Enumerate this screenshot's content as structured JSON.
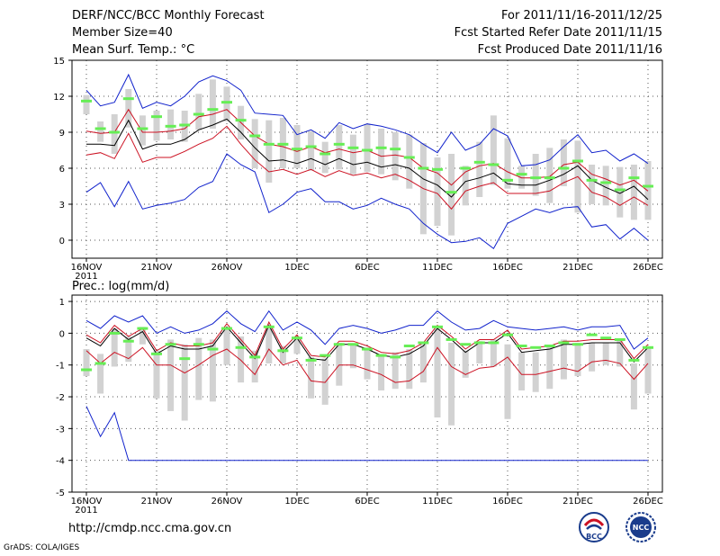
{
  "header": {
    "title": "DERF/NCC/BCC Monthly Forecast",
    "member_size": "Member Size=40",
    "variable": "Mean Surf. Temp.: °C",
    "period": "For 2011/11/16-2011/12/25",
    "started": "Fcst Started Refer Date 2011/11/15",
    "produced": "Fcst Produced Date 2011/11/16"
  },
  "footer": {
    "url": "http://cmdp.ncc.cma.gov.cn",
    "grads": "GrADS: COLA/IGES",
    "logo_left": "BCC",
    "logo_right": "NCC"
  },
  "colors": {
    "box": "#d2d2d2",
    "median": "#66ee55",
    "mean": "#000000",
    "pct": "#cc1122",
    "envelope": "#1122cc",
    "grid": "#555555"
  },
  "chart_data": [
    {
      "type": "line",
      "title": "",
      "ylabel": "",
      "ylim": [
        -1.5,
        15
      ],
      "yticks": [
        "15",
        "12",
        "9",
        "6",
        "3",
        "0"
      ],
      "ytick_values": [
        15,
        12,
        9,
        6,
        3,
        0
      ],
      "xlim": [
        0,
        40
      ],
      "xtick_labels": [
        "16NOV",
        "21NOV",
        "26NOV",
        "1DEC",
        "6DEC",
        "11DEC",
        "16DEC",
        "21DEC",
        "26DEC"
      ],
      "xtick_days": [
        0,
        5,
        10,
        15,
        20,
        25,
        30,
        35,
        40
      ],
      "year_label": "2011",
      "series": [
        {
          "name": "max",
          "values": [
            4.0,
            4.8,
            2.8,
            4.9,
            2.6,
            2.9,
            3.1,
            3.4,
            4.4,
            4.9,
            7.2,
            6.3,
            5.7,
            2.3,
            3.0,
            4.0,
            4.3,
            3.2,
            3.2,
            2.6,
            2.9,
            3.5,
            3.0,
            2.6,
            1.4,
            0.5,
            -0.2,
            -0.1,
            0.2,
            -0.7,
            1.4,
            2.0,
            2.6,
            2.3,
            2.7,
            2.8,
            1.1,
            1.3,
            0.1,
            1.0,
            0.0
          ]
        },
        {
          "name": "upper",
          "values": [
            12.5,
            11.2,
            11.5,
            13.8,
            11.0,
            11.5,
            11.2,
            12.0,
            13.2,
            13.7,
            13.3,
            12.5,
            10.6,
            10.5,
            10.4,
            8.8,
            9.2,
            8.5,
            9.8,
            9.3,
            9.7,
            9.5,
            9.2,
            8.8,
            8.0,
            7.3,
            9.0,
            7.5,
            8.0,
            9.3,
            8.7,
            6.2,
            6.3,
            6.7,
            7.8,
            8.8,
            7.3,
            7.5,
            6.6,
            7.2,
            6.4
          ]
        },
        {
          "name": "p75",
          "values": [
            9.1,
            8.9,
            9.0,
            10.9,
            9.0,
            9.0,
            9.1,
            9.3,
            10.3,
            10.5,
            10.9,
            9.8,
            8.7,
            8.0,
            7.8,
            7.4,
            7.8,
            7.3,
            7.6,
            7.3,
            7.5,
            7.0,
            7.1,
            6.9,
            6.0,
            5.6,
            4.6,
            5.7,
            6.2,
            6.4,
            5.7,
            5.2,
            5.2,
            5.3,
            6.3,
            6.5,
            5.5,
            5.1,
            4.6,
            5.0,
            4.1
          ]
        },
        {
          "name": "mean",
          "values": [
            8.0,
            8.0,
            7.9,
            10.0,
            7.6,
            8.0,
            8.0,
            8.4,
            9.2,
            9.6,
            10.1,
            9.0,
            7.7,
            6.6,
            6.7,
            6.4,
            6.8,
            6.3,
            6.8,
            6.3,
            6.5,
            6.1,
            6.3,
            6.0,
            5.1,
            4.6,
            3.6,
            4.9,
            5.2,
            5.6,
            4.7,
            4.6,
            4.6,
            5.0,
            5.5,
            6.2,
            5.0,
            4.4,
            3.9,
            4.5,
            3.4
          ]
        },
        {
          "name": "p25",
          "values": [
            7.1,
            7.3,
            6.8,
            8.9,
            6.5,
            6.9,
            6.9,
            7.4,
            8.0,
            8.5,
            9.5,
            8.0,
            6.7,
            5.7,
            5.9,
            5.5,
            5.9,
            5.3,
            5.8,
            5.4,
            5.6,
            5.2,
            5.5,
            5.0,
            4.3,
            3.9,
            2.6,
            4.1,
            4.5,
            4.8,
            3.9,
            3.9,
            3.9,
            4.1,
            4.8,
            5.3,
            4.0,
            3.6,
            2.9,
            3.6,
            2.9
          ]
        }
      ],
      "boxes": {
        "low": [
          10.5,
          8.2,
          7.2,
          9.4,
          7.9,
          8.3,
          8.4,
          8.2,
          9.2,
          9.3,
          9.9,
          8.4,
          6.0,
          4.8,
          6.0,
          6.0,
          5.8,
          5.6,
          5.9,
          5.5,
          5.7,
          5.5,
          5.0,
          4.3,
          0.5,
          1.2,
          0.4,
          2.9,
          3.6,
          4.6,
          4.3,
          4.3,
          3.7,
          3.1,
          4.5,
          2.3,
          3.0,
          2.9,
          1.9,
          1.7,
          1.7
        ],
        "high": [
          12.1,
          9.9,
          10.5,
          12.6,
          10.4,
          10.8,
          10.9,
          10.8,
          12.2,
          13.4,
          12.8,
          11.2,
          10.1,
          10.0,
          10.2,
          9.6,
          9.1,
          8.2,
          9.6,
          8.8,
          9.7,
          9.3,
          9.0,
          8.8,
          8.1,
          6.9,
          7.2,
          6.2,
          8.2,
          10.4,
          8.5,
          6.2,
          7.2,
          7.7,
          8.4,
          8.3,
          6.3,
          6.2,
          6.1,
          6.3,
          6.6
        ]
      },
      "medians": [
        11.6,
        9.3,
        9.0,
        11.8,
        9.3,
        10.3,
        9.5,
        9.6,
        10.5,
        10.9,
        11.5,
        10.0,
        8.7,
        8.0,
        8.0,
        7.6,
        7.8,
        7.2,
        8.0,
        7.7,
        7.5,
        7.7,
        7.6,
        6.9,
        6.0,
        5.9,
        4.0,
        6.0,
        6.5,
        6.3,
        5.0,
        5.5,
        5.2,
        5.2,
        6.0,
        6.6,
        5.0,
        4.8,
        4.2,
        5.2,
        4.5
      ]
    },
    {
      "type": "line",
      "title": "Prec.: log(mm/d)",
      "ylabel": "",
      "ylim": [
        -5,
        1.2
      ],
      "yticks": [
        "1",
        "0",
        "-1",
        "-2",
        "-3",
        "-4",
        "-5"
      ],
      "ytick_values": [
        1,
        0,
        -1,
        -2,
        -3,
        -4,
        -5
      ],
      "xlim": [
        0,
        40
      ],
      "xtick_labels": [
        "16NOV",
        "21NOV",
        "26NOV",
        "1DEC",
        "6DEC",
        "11DEC",
        "16DEC",
        "21DEC",
        "26DEC"
      ],
      "xtick_days": [
        0,
        5,
        10,
        15,
        20,
        25,
        30,
        35,
        40
      ],
      "year_label": "2011",
      "series": [
        {
          "name": "min",
          "values": [
            -2.3,
            -3.25,
            -2.5,
            -4.0,
            -4.0,
            -4.0,
            -4.0,
            -4.0,
            -4.0,
            -4.0,
            -4.0,
            -4.0,
            -4.0,
            -4.0,
            -4.0,
            -4.0,
            -4.0,
            -4.0,
            -4.0,
            -4.0,
            -4.0,
            -4.0,
            -4.0,
            -4.0,
            -4.0,
            -4.0,
            -4.0,
            -4.0,
            -4.0,
            -4.0,
            -4.0,
            -4.0,
            -4.0,
            -4.0,
            -4.0,
            -4.0,
            -4.0,
            -4.0,
            -4.0,
            -4.0,
            -4.0
          ]
        },
        {
          "name": "upper",
          "values": [
            0.4,
            0.15,
            0.55,
            0.35,
            0.55,
            0.0,
            0.2,
            0.0,
            0.1,
            0.3,
            0.7,
            0.3,
            0.05,
            0.7,
            0.1,
            0.35,
            0.1,
            -0.35,
            0.15,
            0.25,
            0.15,
            0.0,
            0.1,
            0.25,
            0.25,
            0.7,
            0.35,
            0.1,
            0.15,
            0.4,
            0.2,
            0.15,
            0.1,
            0.15,
            0.2,
            0.1,
            0.2,
            0.2,
            0.25,
            -0.5,
            -0.15
          ]
        },
        {
          "name": "mean",
          "values": [
            -0.15,
            -0.4,
            0.15,
            -0.2,
            0.05,
            -0.65,
            -0.4,
            -0.5,
            -0.5,
            -0.4,
            0.2,
            -0.3,
            -0.8,
            0.25,
            -0.6,
            -0.15,
            -0.8,
            -0.85,
            -0.35,
            -0.35,
            -0.5,
            -0.7,
            -0.75,
            -0.65,
            -0.4,
            0.15,
            -0.2,
            -0.6,
            -0.3,
            -0.3,
            0.0,
            -0.6,
            -0.55,
            -0.5,
            -0.35,
            -0.35,
            -0.3,
            -0.3,
            -0.3,
            -0.9,
            -0.45
          ]
        },
        {
          "name": "p75",
          "values": [
            -0.05,
            -0.3,
            0.25,
            -0.1,
            0.15,
            -0.55,
            -0.3,
            -0.4,
            -0.4,
            -0.3,
            0.3,
            -0.2,
            -0.7,
            0.35,
            -0.5,
            -0.05,
            -0.7,
            -0.75,
            -0.25,
            -0.25,
            -0.4,
            -0.6,
            -0.65,
            -0.55,
            -0.3,
            0.25,
            -0.1,
            -0.5,
            -0.2,
            -0.2,
            0.1,
            -0.5,
            -0.45,
            -0.4,
            -0.25,
            -0.25,
            -0.2,
            -0.2,
            -0.2,
            -0.8,
            -0.35
          ]
        },
        {
          "name": "p25",
          "values": [
            -0.55,
            -0.95,
            -0.6,
            -0.8,
            -0.45,
            -1.0,
            -1.0,
            -1.25,
            -1.0,
            -0.7,
            -0.5,
            -0.85,
            -1.3,
            -0.5,
            -1.0,
            -0.85,
            -1.5,
            -1.55,
            -1.0,
            -1.0,
            -1.15,
            -1.3,
            -1.55,
            -1.5,
            -1.2,
            -0.45,
            -1.05,
            -1.3,
            -1.1,
            -1.05,
            -0.75,
            -1.3,
            -1.3,
            -1.2,
            -1.1,
            -1.2,
            -0.9,
            -0.85,
            -0.95,
            -1.45,
            -0.95
          ]
        }
      ],
      "boxes": {
        "low": [
          -1.35,
          -1.9,
          -1.05,
          -0.9,
          -0.35,
          -2.05,
          -2.45,
          -2.75,
          -2.1,
          -2.15,
          -1.0,
          -1.55,
          -1.55,
          -0.95,
          -0.95,
          -0.65,
          -2.05,
          -2.25,
          -1.65,
          -1.1,
          -1.45,
          -1.8,
          -1.75,
          -1.75,
          -1.55,
          -2.65,
          -2.9,
          -1.4,
          -0.95,
          -1.05,
          -2.7,
          -1.8,
          -1.85,
          -1.75,
          -1.45,
          -1.35,
          -1.2,
          -1.0,
          -1.05,
          -2.4,
          -1.9
        ],
        "high": [
          -0.5,
          -0.65,
          0.15,
          -0.1,
          0.2,
          -0.55,
          -0.2,
          -0.35,
          -0.15,
          -0.2,
          0.15,
          -0.1,
          -0.55,
          0.2,
          -0.4,
          -0.1,
          -0.75,
          -0.8,
          -0.3,
          -0.35,
          -0.45,
          -0.65,
          -0.6,
          -0.5,
          -0.35,
          0.15,
          -0.3,
          -0.55,
          -0.25,
          -0.2,
          -0.35,
          -0.6,
          -0.6,
          -0.4,
          -0.2,
          -0.3,
          -0.3,
          -0.3,
          -0.2,
          -0.95,
          -0.45
        ]
      },
      "medians": [
        -1.15,
        -0.95,
        0.0,
        -0.25,
        0.15,
        -0.65,
        -0.35,
        -0.8,
        -0.35,
        -0.5,
        0.15,
        -0.45,
        -0.75,
        0.2,
        -0.55,
        -0.15,
        -0.85,
        -0.7,
        -0.35,
        -0.35,
        -0.5,
        -0.7,
        -0.75,
        -0.4,
        -0.3,
        0.2,
        -0.2,
        -0.35,
        -0.3,
        -0.3,
        -0.05,
        -0.4,
        -0.45,
        -0.4,
        -0.3,
        -0.35,
        -0.05,
        -0.15,
        -0.2,
        -0.85,
        -0.45
      ]
    }
  ]
}
